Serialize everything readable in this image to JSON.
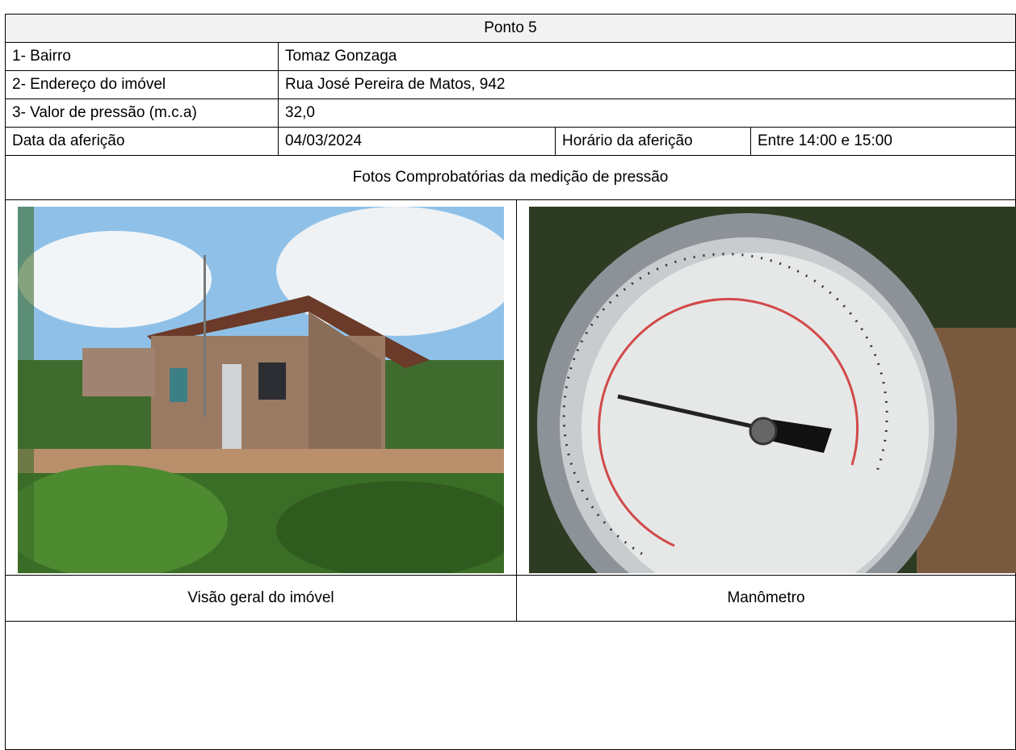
{
  "header": {
    "title": "Ponto 5"
  },
  "rows": [
    {
      "label": "1- Bairro",
      "value": "Tomaz Gonzaga"
    },
    {
      "label": "2- Endereço do imóvel",
      "value": "Rua José Pereira de Matos, 942"
    },
    {
      "label": "3- Valor de pressão (m.c.a)",
      "value": "32,0"
    }
  ],
  "date_row": [
    "Data da aferição",
    "04/03/2024",
    "Horário da aferição",
    "Entre 14:00 e 15:00"
  ],
  "photos_title": "Fotos Comprobatórias da medição de pressão",
  "captions": [
    "Visão geral do imóvel",
    "Manômetro"
  ]
}
